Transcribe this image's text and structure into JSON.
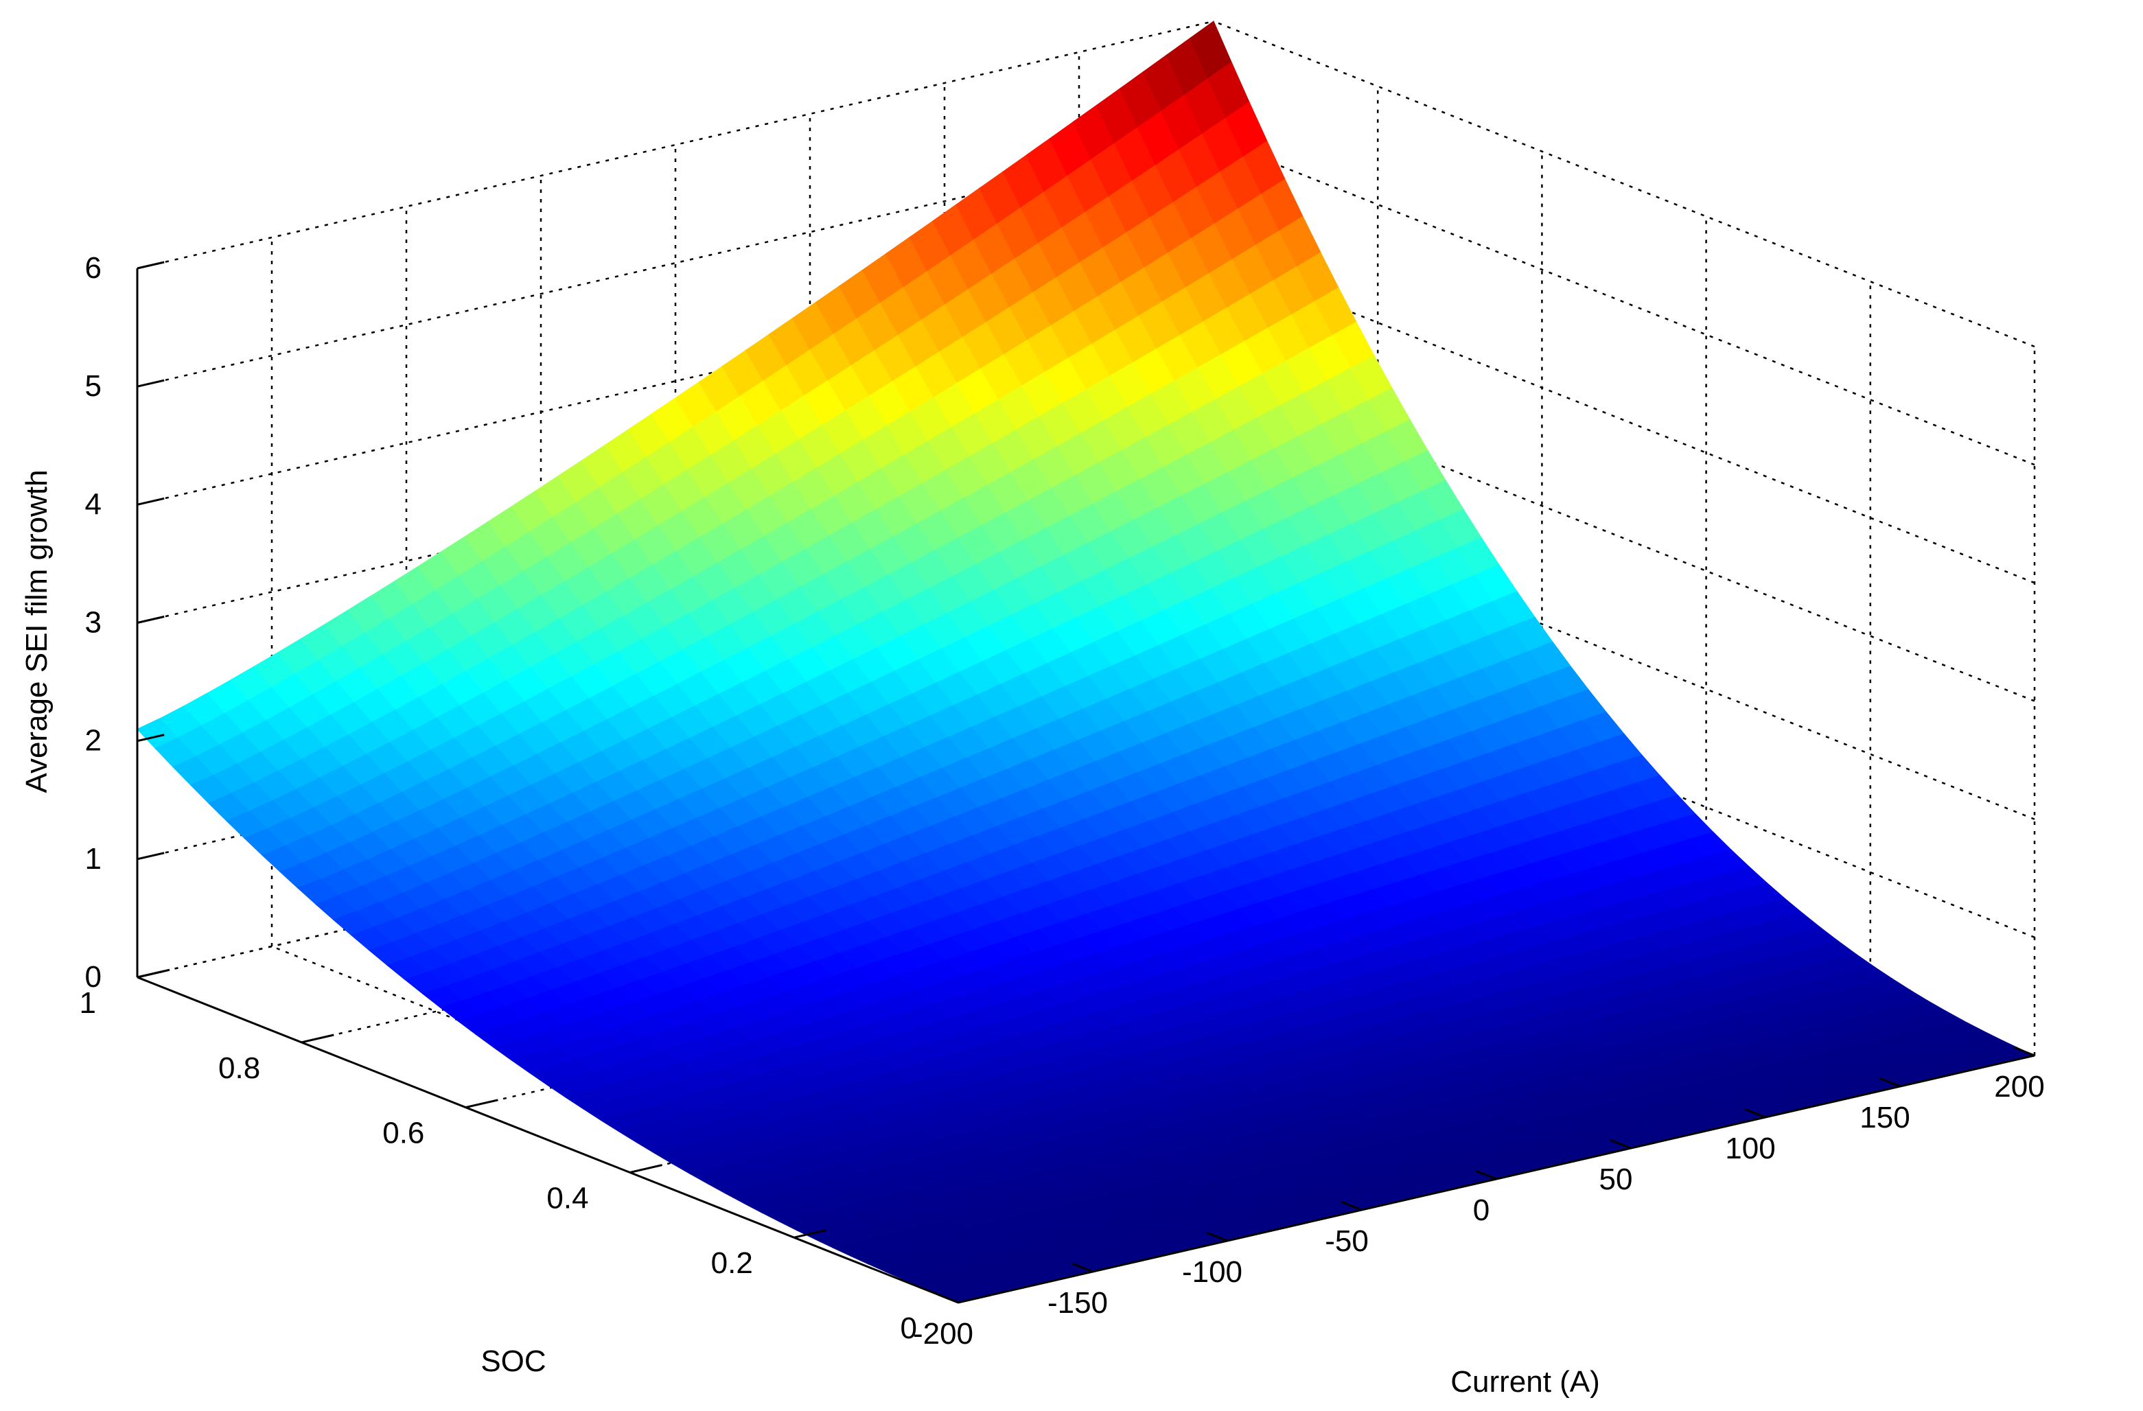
{
  "chart_data": {
    "type": "surface",
    "title": "",
    "xlabel": "Current (A)",
    "ylabel": "SOC",
    "zlabel": "Average SEI film growth",
    "xlim": [
      -200,
      200
    ],
    "ylim": [
      0,
      1
    ],
    "zlim": [
      0,
      6
    ],
    "x_ticks": [
      "-200",
      "-150",
      "-100",
      "-50",
      "0",
      "50",
      "100",
      "150",
      "200"
    ],
    "y_ticks": [
      "0",
      "0.2",
      "0.4",
      "0.6",
      "0.8",
      "1"
    ],
    "z_ticks": [
      "0",
      "1",
      "2",
      "3",
      "4",
      "5",
      "6"
    ],
    "grid": true,
    "colormap": "jet",
    "corner_values": [
      {
        "current": -200,
        "soc": 0,
        "growth": 0.0
      },
      {
        "current": 200,
        "soc": 0,
        "growth": 0.0
      },
      {
        "current": -200,
        "soc": 1,
        "growth": 2.1
      },
      {
        "current": 200,
        "soc": 1,
        "growth": 6.0
      }
    ],
    "edge_soc1_current": [
      -200,
      -150,
      -100,
      -50,
      0,
      50,
      100,
      150,
      200
    ],
    "edge_soc1_growth": [
      2.1,
      2.5,
      2.9,
      3.4,
      3.9,
      4.4,
      4.9,
      5.4,
      6.0
    ],
    "edge_current200_soc": [
      0,
      0.2,
      0.4,
      0.6,
      0.8,
      1.0
    ],
    "edge_current200_growth": [
      0.0,
      0.35,
      0.8,
      1.6,
      3.0,
      6.0
    ]
  }
}
